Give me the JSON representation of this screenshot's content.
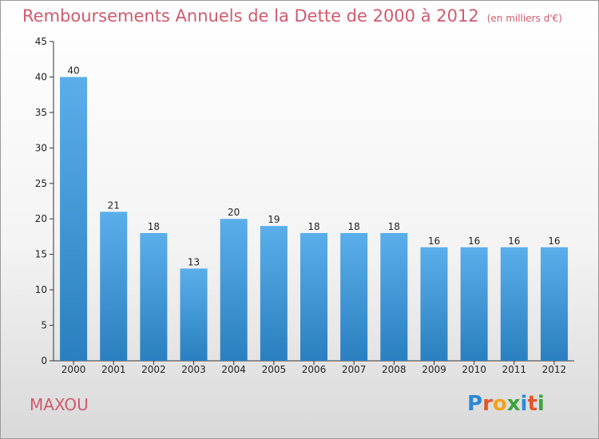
{
  "title": "Remboursements Annuels de la Dette de 2000 à 2012",
  "unit_note": "(en milliers d'€)",
  "town": "MAXOU",
  "logo": "Proxiti",
  "colors": {
    "title": "#d05a6e",
    "bar_top": "#5aaeea",
    "bar_bottom": "#2a7fc0",
    "axis": "#333333",
    "gridline": "#dddddd"
  },
  "chart_data": {
    "type": "bar",
    "categories": [
      "2000",
      "2001",
      "2002",
      "2003",
      "2004",
      "2005",
      "2006",
      "2007",
      "2008",
      "2009",
      "2010",
      "2011",
      "2012"
    ],
    "values": [
      40,
      21,
      18,
      13,
      20,
      19,
      18,
      18,
      18,
      16,
      16,
      16,
      16
    ],
    "ylim": [
      0,
      45
    ],
    "yticks": [
      0,
      5,
      10,
      15,
      20,
      25,
      30,
      35,
      40,
      45
    ],
    "data_labels": true,
    "grid": false
  }
}
